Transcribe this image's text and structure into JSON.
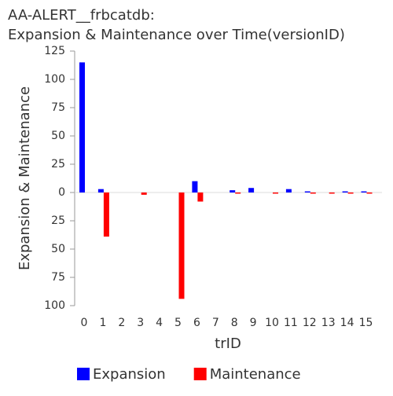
{
  "chart_data": {
    "type": "bar",
    "title": "AA-ALERT__frbcatdb:",
    "subtitle": "Expansion & Maintenance over Time(versionID)",
    "x_label": "trID",
    "y_label": "Expansion & Maintenance",
    "categories": [
      "0",
      "1",
      "2",
      "3",
      "4",
      "5",
      "6",
      "7",
      "8",
      "9",
      "10",
      "11",
      "12",
      "13",
      "14",
      "15"
    ],
    "series": [
      {
        "name": "Expansion",
        "color": "#0000ff",
        "values": [
          115,
          3,
          0,
          0,
          0,
          0,
          10,
          0,
          2,
          4,
          0,
          3,
          1,
          0,
          1,
          1
        ]
      },
      {
        "name": "Maintenance",
        "color": "#ff0000",
        "values": [
          0,
          -39,
          0,
          -2,
          0,
          -94,
          -8,
          0,
          -1,
          0,
          -1,
          0,
          -1,
          -1,
          -1,
          -1
        ]
      }
    ],
    "ylim": [
      -100,
      125
    ],
    "yticks": [
      125,
      100,
      75,
      50,
      25,
      0,
      {
        "value": -25,
        "label": "25"
      },
      {
        "value": -50,
        "label": "50"
      },
      {
        "value": -75,
        "label": "75"
      },
      {
        "value": -100,
        "label": "100"
      }
    ],
    "legend": "bottom"
  }
}
